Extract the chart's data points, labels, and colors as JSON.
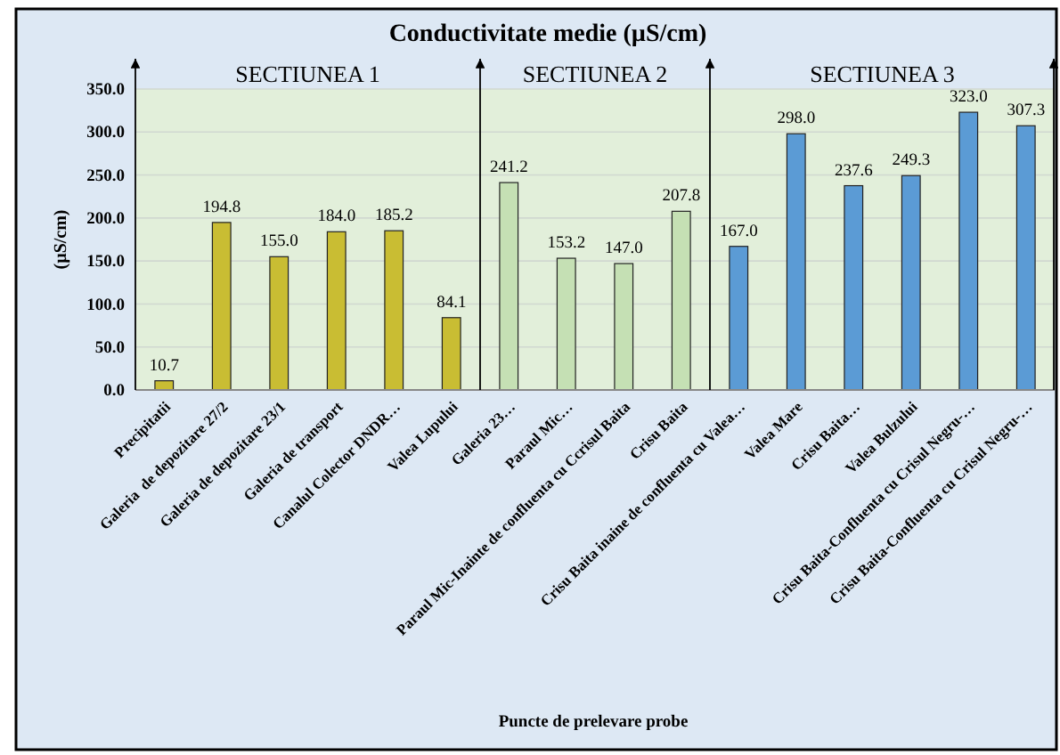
{
  "chart_data": {
    "type": "bar",
    "title": "Conductivitate medie (µS/cm)",
    "xlabel": "Puncte de prelevare probe",
    "ylabel": "(µS/cm)",
    "categories": [
      "Precipitatii",
      "Galeria  de depozitare 27/2",
      "Galeria de depozitare 23/1",
      "Galeria de transport",
      "Canalul Colector DNDR…",
      "Valea Lupului",
      "Galeria 23…",
      "Paraul Mic…",
      "Paraul Mic-Inainte de confluenta cu Ccrisul Baita",
      "Crisu Baita",
      "Crisu Baita inaine de confluenta cu Valea…",
      "Valea Mare",
      "Crisu Baita…",
      "Valea Bulzului",
      "Crisu Baita-Confluenta cu Crisul Negru-…",
      "Crisu Baita-Confluenta cu Crisul Negru-…"
    ],
    "values": [
      10.7,
      194.8,
      155.0,
      184.0,
      185.2,
      84.1,
      241.2,
      153.2,
      147.0,
      207.8,
      167.0,
      298.0,
      237.6,
      249.3,
      323.0,
      307.3
    ],
    "value_labels": [
      "10.7",
      "194.8",
      "155.0",
      "184.0",
      "185.2",
      "84.1",
      "241.2",
      "153.2",
      "147.0",
      "207.8",
      "167.0",
      "298.0",
      "237.6",
      "249.3",
      "323.0",
      "307.3"
    ],
    "colors": [
      "#c9bd33",
      "#c9bd33",
      "#c9bd33",
      "#c9bd33",
      "#c9bd33",
      "#c9bd33",
      "#c5e0b4",
      "#c5e0b4",
      "#c5e0b4",
      "#c5e0b4",
      "#5b9bd5",
      "#5b9bd5",
      "#5b9bd5",
      "#5b9bd5",
      "#5b9bd5",
      "#5b9bd5"
    ],
    "ylim": [
      0,
      350
    ],
    "yticks": [
      {
        "value": 0,
        "label": "0.0"
      },
      {
        "value": 50,
        "label": "50.0"
      },
      {
        "value": 100,
        "label": "100.0"
      },
      {
        "value": 150,
        "label": "150.0"
      },
      {
        "value": 200,
        "label": "200.0"
      },
      {
        "value": 250,
        "label": "250.0"
      },
      {
        "value": 300,
        "label": "300.0"
      },
      {
        "value": 350,
        "label": "350.0"
      }
    ],
    "grid": "y",
    "annotations": [
      "SECTIUNEA 1",
      "SECTIUNEA 2",
      "SECTIUNEA 3"
    ]
  }
}
